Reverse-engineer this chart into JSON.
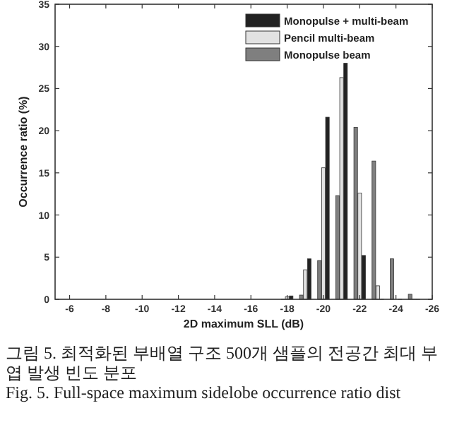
{
  "chart_data": {
    "type": "bar",
    "xlabel": "2D maximum SLL (dB)",
    "ylabel": "Occurrence ratio (%)",
    "x": [
      -18,
      -19,
      -20,
      -21,
      -22,
      -23,
      -24,
      -25
    ],
    "series": [
      {
        "name": "Monopulse + multi-beam",
        "color": "#222222",
        "values": [
          0.4,
          4.8,
          21.6,
          28.0,
          5.2,
          0,
          0,
          0
        ]
      },
      {
        "name": "Pencil multi-beam",
        "color": "#e2e2e2",
        "values": [
          0.3,
          3.5,
          15.6,
          26.3,
          12.6,
          1.6,
          null,
          0
        ]
      },
      {
        "name": "Monopulse beam",
        "color": "#7f7f7f",
        "values": [
          0,
          0.5,
          4.6,
          12.3,
          20.4,
          16.4,
          4.8,
          0.6
        ]
      }
    ],
    "xlim": [
      -5.2,
      -26
    ],
    "xticks": [
      -6,
      -8,
      -10,
      -12,
      -14,
      -16,
      -18,
      -20,
      -22,
      -24,
      -26
    ],
    "ylim": [
      0,
      35
    ],
    "yticks": [
      0,
      5,
      10,
      15,
      20,
      25,
      30,
      35
    ],
    "legend": "top right",
    "grid": false,
    "annotations": [
      "그림 5. 최적화된 부배열 구조 500개 샘플의 전공간 최대 부엽 발생 빈도 분포",
      "Fig. 5. Full-space maximum sidelobe occurrence ratio dist"
    ]
  }
}
